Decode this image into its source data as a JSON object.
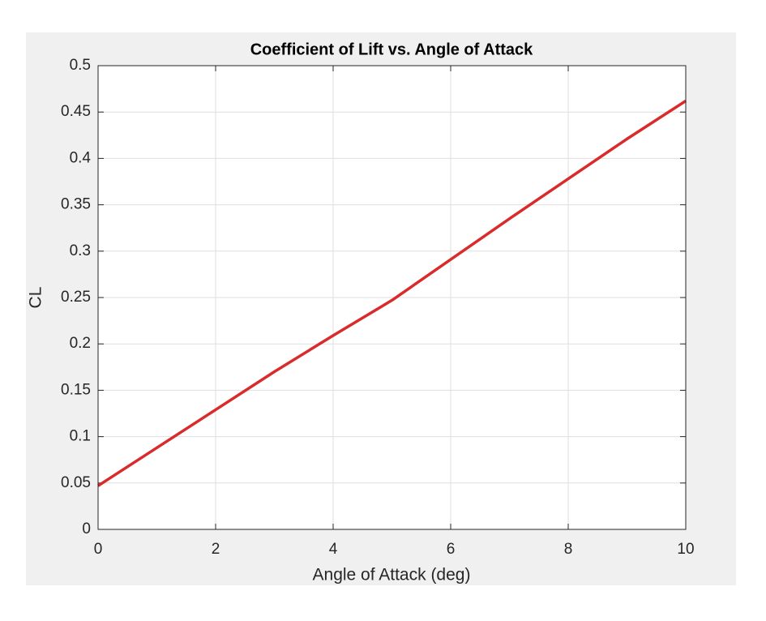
{
  "chart_data": {
    "type": "line",
    "title": "Coefficient of Lift vs. Angle of Attack",
    "x_label": "Angle of Attack (deg)",
    "y_label": "CL",
    "x": [
      0,
      1,
      2,
      3,
      4,
      5,
      6,
      7,
      8,
      9,
      10
    ],
    "series": [
      {
        "name": "CL",
        "color": "#d92b2b",
        "values": [
          0.047,
          0.088,
          0.129,
          0.17,
          0.209,
          0.247,
          0.291,
          0.335,
          0.378,
          0.421,
          0.462
        ]
      }
    ],
    "xlim": [
      0,
      10
    ],
    "xticks": [
      0,
      2,
      4,
      6,
      8,
      10
    ],
    "ylim": [
      0,
      0.5
    ],
    "yticks": [
      0,
      0.05,
      0.1,
      0.15,
      0.2,
      0.25,
      0.3,
      0.35,
      0.4,
      0.45,
      0.5
    ],
    "grid": true
  }
}
